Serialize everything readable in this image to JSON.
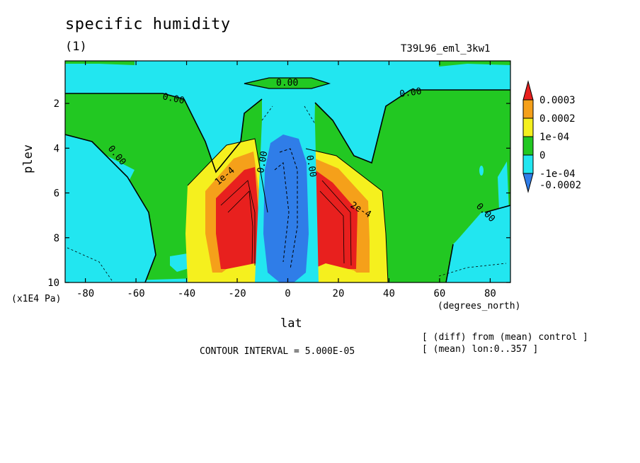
{
  "chart_data": {
    "type": "contour",
    "title": "specific humidity",
    "subtitle": "(1)",
    "run_name": "T39L96_eml_3kw1",
    "xlabel": "lat",
    "x_units": "(degrees_north)",
    "ylabel": "plev",
    "y_units": "(x1E4 Pa)",
    "x_ticks": [
      "-80",
      "-60",
      "-40",
      "-20",
      "0",
      "20",
      "40",
      "60",
      "80"
    ],
    "x_tick_values": [
      -80,
      -60,
      -40,
      -20,
      0,
      20,
      40,
      60,
      80
    ],
    "y_ticks": [
      "2",
      "4",
      "6",
      "8",
      "10"
    ],
    "y_tick_values": [
      2,
      4,
      6,
      8,
      10
    ],
    "xlim": [
      -88,
      88
    ],
    "ylim": [
      10,
      0.1
    ],
    "y_inverted": true,
    "contour_interval_text": "CONTOUR INTERVAL = 5.000E-05",
    "notes": [
      "[ (diff) from (mean) control ]",
      "[ (mean) lon:0..357 ]"
    ],
    "colorbar": {
      "levels": [
        "0.0003",
        "0.0002",
        "1e-04",
        "0",
        "-1e-04",
        "-0.0002"
      ],
      "colors": [
        "#e8201e",
        "#f5a01a",
        "#f5f01e",
        "#22c822",
        "#22e6f0",
        "#2f7de8"
      ]
    },
    "contour_labels": [
      "0.00",
      "0.00",
      "0.00",
      "0.00",
      "0.00",
      "1e-4",
      "2e-4",
      "0.00",
      "0.00"
    ],
    "colors": {
      "cyan": "#22e6f0",
      "green": "#22c822",
      "yellow": "#f5f01e",
      "orange": "#f5a01a",
      "red": "#e8201e",
      "blue": "#2f7de8"
    }
  }
}
